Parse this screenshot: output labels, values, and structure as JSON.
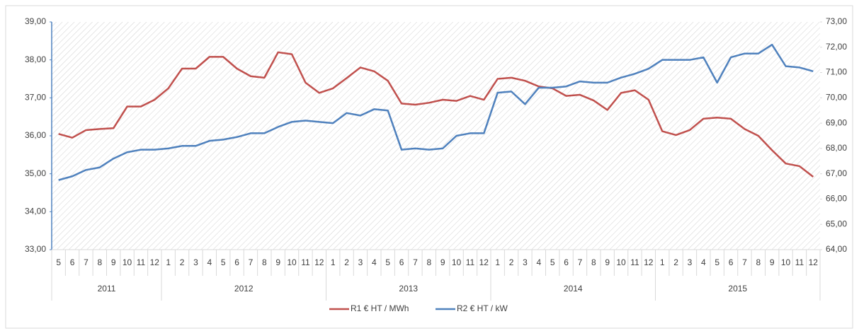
{
  "chart_data": {
    "type": "line",
    "categories": [
      "5",
      "6",
      "7",
      "8",
      "9",
      "10",
      "11",
      "12",
      "1",
      "2",
      "3",
      "4",
      "5",
      "6",
      "7",
      "8",
      "9",
      "10",
      "11",
      "12",
      "1",
      "2",
      "3",
      "4",
      "5",
      "6",
      "7",
      "8",
      "9",
      "10",
      "11",
      "12",
      "1",
      "2",
      "3",
      "4",
      "5",
      "6",
      "7",
      "8",
      "9",
      "10",
      "11",
      "12",
      "1",
      "2",
      "3",
      "4",
      "5",
      "6",
      "7",
      "8",
      "9",
      "10",
      "11",
      "12"
    ],
    "year_labels": [
      "2011",
      "2012",
      "2013",
      "2014",
      "2015"
    ],
    "series": [
      {
        "name": "R1 € HT / MWh",
        "color": "#c0504d",
        "axis": "y",
        "values": [
          36.05,
          35.95,
          36.15,
          36.18,
          36.2,
          36.77,
          36.77,
          36.95,
          37.25,
          37.77,
          37.77,
          38.08,
          38.08,
          37.77,
          37.57,
          37.53,
          38.2,
          38.15,
          37.4,
          37.13,
          37.25,
          37.52,
          37.8,
          37.7,
          37.45,
          36.85,
          36.82,
          36.87,
          36.95,
          36.92,
          37.05,
          36.95,
          37.5,
          37.53,
          37.45,
          37.3,
          37.25,
          37.05,
          37.08,
          36.93,
          36.68,
          37.13,
          37.2,
          36.95,
          36.12,
          36.02,
          36.15,
          36.45,
          36.48,
          36.45,
          36.18,
          36.0,
          35.62,
          35.27,
          35.2,
          34.92
        ]
      },
      {
        "name": "R2 € HT / kW",
        "color": "#4f81bd",
        "axis": "y2",
        "values": [
          66.75,
          66.9,
          67.15,
          67.25,
          67.6,
          67.85,
          67.95,
          67.95,
          68.0,
          68.1,
          68.1,
          68.3,
          68.35,
          68.45,
          68.6,
          68.6,
          68.85,
          69.05,
          69.1,
          69.05,
          69.0,
          69.4,
          69.3,
          69.55,
          69.5,
          67.95,
          68.0,
          67.95,
          68.0,
          68.5,
          68.6,
          68.6,
          70.2,
          70.25,
          69.75,
          70.4,
          70.4,
          70.45,
          70.65,
          70.6,
          70.6,
          70.8,
          70.95,
          71.15,
          71.5,
          71.5,
          71.5,
          71.6,
          70.6,
          71.6,
          71.75,
          71.75,
          72.1,
          71.25,
          71.2,
          71.05
        ]
      }
    ],
    "ylim": [
      33,
      39
    ],
    "yticks": [
      {
        "value": 33,
        "label": "33,00"
      },
      {
        "value": 34,
        "label": "34,00"
      },
      {
        "value": 35,
        "label": "35,00"
      },
      {
        "value": 36,
        "label": "36,00"
      },
      {
        "value": 37,
        "label": "37,00"
      },
      {
        "value": 38,
        "label": "38,00"
      },
      {
        "value": 39,
        "label": "39,00"
      }
    ],
    "y2lim": [
      64,
      73
    ],
    "y2ticks": [
      {
        "value": 64,
        "label": "64,00"
      },
      {
        "value": 65,
        "label": "65,00"
      },
      {
        "value": 66,
        "label": "66,00"
      },
      {
        "value": 67,
        "label": "67,00"
      },
      {
        "value": 68,
        "label": "68,00"
      },
      {
        "value": 69,
        "label": "69,00"
      },
      {
        "value": 70,
        "label": "70,00"
      },
      {
        "value": 71,
        "label": "71,00"
      },
      {
        "value": 72,
        "label": "72,00"
      },
      {
        "value": 73,
        "label": "73,00"
      }
    ],
    "legend": "bottom"
  }
}
